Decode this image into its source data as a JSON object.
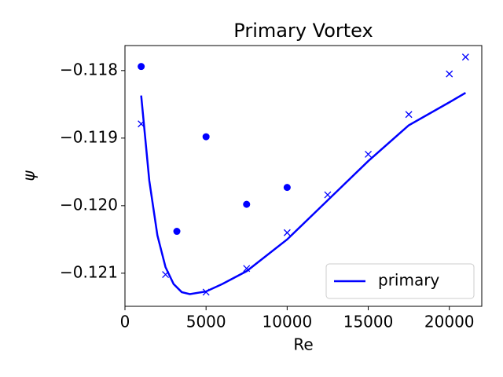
{
  "chart_data": {
    "type": "line",
    "title": "Primary Vortex",
    "xlabel": "Re",
    "ylabel": "ψ",
    "xlim": [
      0,
      22000
    ],
    "ylim": [
      -0.12149,
      -0.11763
    ],
    "xticks": [
      0,
      5000,
      10000,
      15000,
      20000
    ],
    "yticks": [
      {
        "value": -0.118,
        "label": "−0.118"
      },
      {
        "value": -0.119,
        "label": "−0.119"
      },
      {
        "value": -0.12,
        "label": "−0.120"
      },
      {
        "value": -0.121,
        "label": "−0.121"
      }
    ],
    "legend": "lower right",
    "series": [
      {
        "name": "primary",
        "color": "#0000ff",
        "style": "line",
        "x": [
          1000,
          1500,
          2000,
          2500,
          3000,
          3500,
          4000,
          5000,
          6000,
          7500,
          10000,
          12500,
          15000,
          17500,
          20000,
          21000
        ],
        "values": [
          -0.11837,
          -0.11963,
          -0.12044,
          -0.12091,
          -0.12116,
          -0.12128,
          -0.12131,
          -0.12127,
          -0.12116,
          -0.12097,
          -0.1205,
          -0.11992,
          -0.11934,
          -0.11881,
          -0.11847,
          -0.11833
        ]
      },
      {
        "color": "#0000ff",
        "style": "x",
        "x": [
          1000,
          2500,
          5000,
          7500,
          10000,
          12500,
          15000,
          17500,
          20000,
          21000
        ],
        "values": [
          -0.11879,
          -0.12102,
          -0.12128,
          -0.12093,
          -0.1204,
          -0.11984,
          -0.11924,
          -0.11865,
          -0.11805,
          -0.1178
        ]
      },
      {
        "color": "#0000ff",
        "style": "o",
        "x": [
          1000,
          3200,
          5000,
          7500,
          10000
        ],
        "values": [
          -0.11794,
          -0.12038,
          -0.11898,
          -0.11998,
          -0.11973
        ]
      }
    ]
  }
}
